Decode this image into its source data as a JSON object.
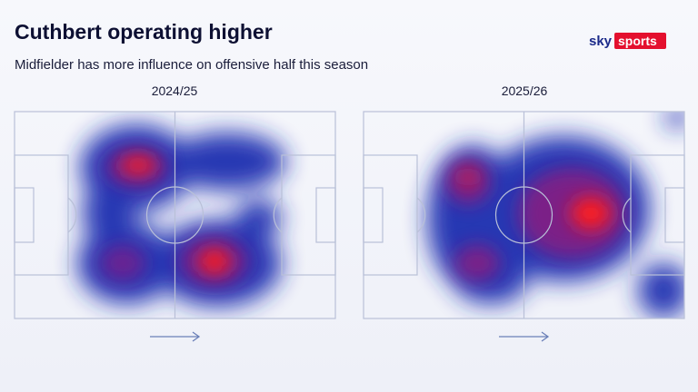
{
  "header": {
    "title": "Cuthbert operating higher",
    "subtitle": "Midfielder has more influence on offensive half this season",
    "brand": {
      "sky": "sky",
      "sports": "sports"
    }
  },
  "panels": [
    {
      "label": "2024/25"
    },
    {
      "label": "2025/26"
    }
  ]
}
